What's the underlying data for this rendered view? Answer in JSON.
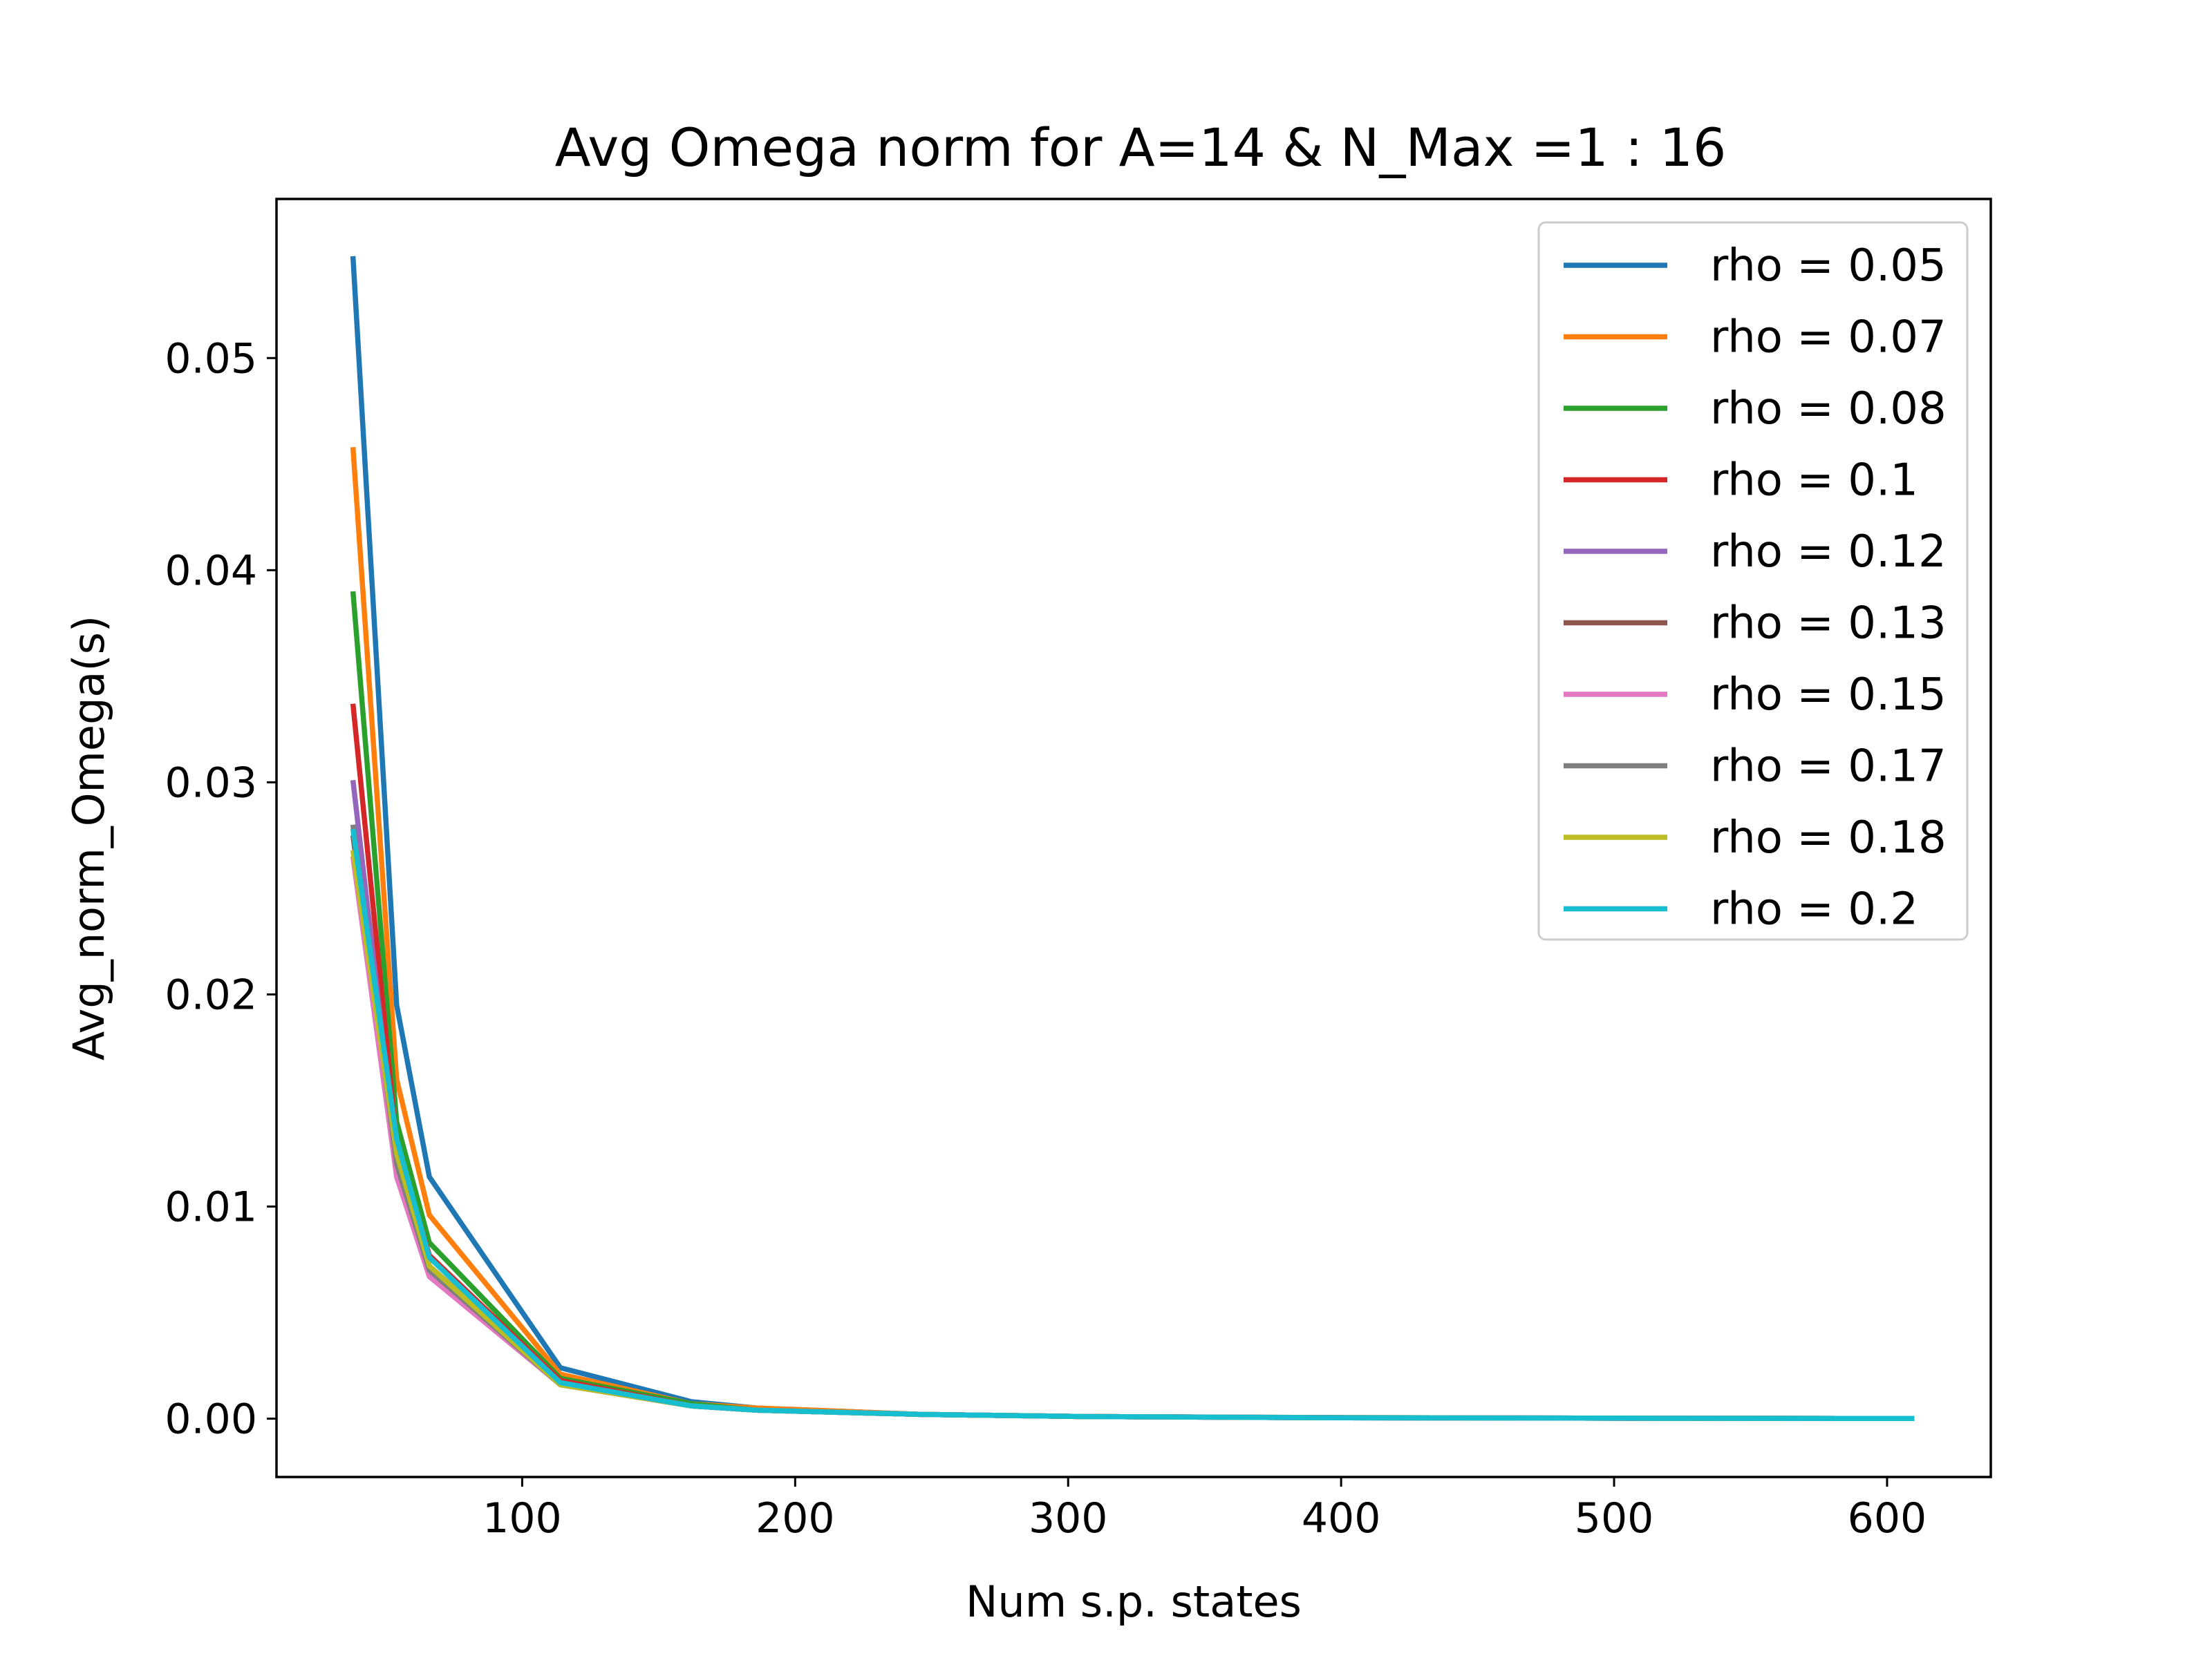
{
  "chart_data": {
    "type": "line",
    "title": "Avg Omega norm for A=14 & N_Max =1 : 16",
    "xlabel": "Num s.p. states",
    "ylabel": "Avg_norm_Omega(s)",
    "xlim": [
      10,
      638
    ],
    "ylim": [
      -0.00275,
      0.0575
    ],
    "xticks": [
      100,
      200,
      300,
      400,
      500,
      600
    ],
    "xtick_labels": [
      "100",
      "200",
      "300",
      "400",
      "500",
      "600"
    ],
    "yticks": [
      0.0,
      0.01,
      0.02,
      0.03,
      0.04,
      0.05
    ],
    "ytick_labels": [
      "0.00",
      "0.01",
      "0.02",
      "0.03",
      "0.04",
      "0.05"
    ],
    "grid": false,
    "legend_position": "top-right",
    "x": [
      38,
      54,
      66,
      114,
      162,
      186,
      246,
      306,
      402,
      506,
      610
    ],
    "series": [
      {
        "name": "rho = 0.05",
        "color": "#1f77b4",
        "values": [
          0.0548,
          0.0195,
          0.0114,
          0.0024,
          0.0008,
          0.0005,
          0.0002,
          0.0001,
          5e-05,
          2e-05,
          1e-05
        ]
      },
      {
        "name": "rho = 0.07",
        "color": "#ff7f0e",
        "values": [
          0.0458,
          0.016,
          0.0096,
          0.0021,
          0.0007,
          0.0005,
          0.0002,
          0.0001,
          5e-05,
          2e-05,
          1e-05
        ]
      },
      {
        "name": "rho = 0.08",
        "color": "#2ca02c",
        "values": [
          0.039,
          0.014,
          0.0083,
          0.0019,
          0.0007,
          0.0004,
          0.0002,
          0.0001,
          4e-05,
          2e-05,
          1e-05
        ]
      },
      {
        "name": "rho = 0.1",
        "color": "#d62728",
        "values": [
          0.0337,
          0.013,
          0.0077,
          0.0018,
          0.0006,
          0.0004,
          0.0002,
          0.0001,
          4e-05,
          2e-05,
          1e-05
        ]
      },
      {
        "name": "rho = 0.12",
        "color": "#9467bd",
        "values": [
          0.0301,
          0.0122,
          0.0072,
          0.0017,
          0.0006,
          0.0004,
          0.0002,
          0.0001,
          4e-05,
          2e-05,
          1e-05
        ]
      },
      {
        "name": "rho = 0.13",
        "color": "#8c564b",
        "values": [
          0.0275,
          0.0117,
          0.0069,
          0.0016,
          0.0006,
          0.0004,
          0.0002,
          0.0001,
          4e-05,
          2e-05,
          1e-05
        ]
      },
      {
        "name": "rho = 0.15",
        "color": "#e377c2",
        "values": [
          0.0265,
          0.0114,
          0.0067,
          0.0016,
          0.0006,
          0.0004,
          0.0002,
          0.0001,
          4e-05,
          2e-05,
          1e-05
        ]
      },
      {
        "name": "rho = 0.17",
        "color": "#7f7f7f",
        "values": [
          0.028,
          0.012,
          0.007,
          0.0016,
          0.0006,
          0.0004,
          0.0002,
          0.0001,
          4e-05,
          2e-05,
          1e-05
        ]
      },
      {
        "name": "rho = 0.18",
        "color": "#bcbd22",
        "values": [
          0.0268,
          0.0125,
          0.0072,
          0.0016,
          0.0006,
          0.0004,
          0.0002,
          0.0001,
          4e-05,
          2e-05,
          1e-05
        ]
      },
      {
        "name": "rho = 0.2",
        "color": "#17becf",
        "values": [
          0.0278,
          0.0132,
          0.0076,
          0.0017,
          0.0006,
          0.0004,
          0.0002,
          0.0001,
          4e-05,
          2e-05,
          1e-05
        ]
      }
    ]
  }
}
